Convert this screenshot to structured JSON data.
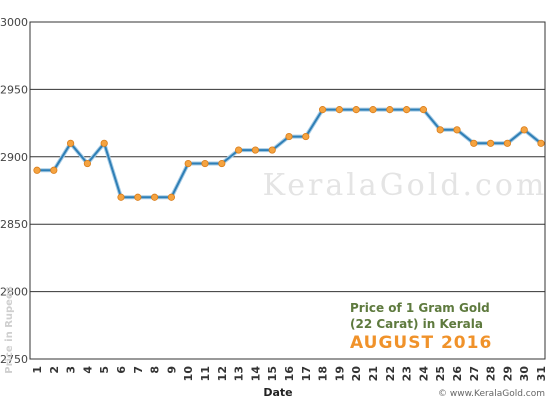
{
  "chart_data": {
    "type": "line",
    "x": [
      1,
      2,
      3,
      4,
      5,
      6,
      7,
      8,
      9,
      10,
      11,
      12,
      13,
      14,
      15,
      16,
      17,
      18,
      19,
      20,
      21,
      22,
      23,
      24,
      25,
      26,
      27,
      28,
      29,
      30,
      31
    ],
    "series": [
      {
        "values": [
          2890,
          2890,
          2910,
          2895,
          2910,
          2870,
          2870,
          2870,
          2870,
          2895,
          2895,
          2895,
          2905,
          2905,
          2905,
          2915,
          2915,
          2935,
          2935,
          2935,
          2935,
          2935,
          2935,
          2935,
          2920,
          2920,
          2910,
          2910,
          2910,
          2920,
          2910
        ]
      }
    ],
    "yticks": [
      2750,
      2800,
      2850,
      2900,
      2950,
      3000
    ],
    "ylim": [
      2750,
      3000
    ],
    "xlabel": "Date",
    "ylabel": "Price in Rupees",
    "grid": "horizontal",
    "line_color": "#2f7fb6",
    "marker_color": "#f5a340",
    "marker_stroke": "#d97d1a"
  },
  "caption": {
    "line1": "Price of 1 Gram Gold",
    "line2": "(22 Carat) in Kerala",
    "line3": "AUGUST 2016"
  },
  "watermark": "KeralaGold.com",
  "credit": "© www.KeralaGold.com"
}
